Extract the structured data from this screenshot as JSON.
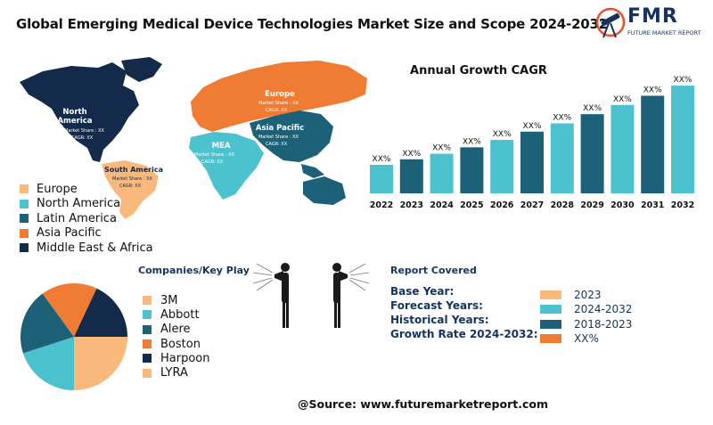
{
  "title": "Global Emerging Medical Device Technologies Market Size and Scope 2024-2032",
  "logo": {
    "name": "FMR",
    "subtitle": "FUTURE MARKET REPORT"
  },
  "colors": {
    "orange": "#f07c33",
    "cyan": "#4cc2cf",
    "teal": "#1d6179",
    "navy": "#142a4a",
    "peach": "#f9b87c",
    "barLight": "#4cc2cf",
    "barDark": "#1d6179"
  },
  "map": {
    "regions": [
      {
        "name": "North America",
        "share": "Market Share : XX",
        "cagr": "CAGR: XX"
      },
      {
        "name": "Europe",
        "share": "Market Share : XX",
        "cagr": "CAGR: XX"
      },
      {
        "name": "Asia Pacific",
        "share": "Market Share : XX",
        "cagr": "CAGR: XX"
      },
      {
        "name": "MEA",
        "share": "Market Share : XX",
        "cagr": "CAGR: XX"
      },
      {
        "name": "South America",
        "share": "Market Share : XX",
        "cagr": "CAGR: XX"
      }
    ]
  },
  "region_legend": [
    {
      "label": "Europe",
      "color": "#f9b87c"
    },
    {
      "label": "North America",
      "color": "#4cc2cf"
    },
    {
      "label": "Latin America",
      "color": "#1d6179"
    },
    {
      "label": "Asia Pacific",
      "color": "#f07c33"
    },
    {
      "label": "Middle East & Africa",
      "color": "#142a4a"
    }
  ],
  "chart_data": [
    {
      "type": "bar",
      "title": "Annual Growth CAGR",
      "categories": [
        "2022",
        "2023",
        "2024",
        "2025",
        "2026",
        "2027",
        "2028",
        "2029",
        "2030",
        "2031",
        "2032"
      ],
      "values": [
        31,
        37,
        43,
        50,
        58,
        67,
        76,
        86,
        96,
        106,
        117
      ],
      "data_labels": [
        "XX%",
        "XX%",
        "XX%",
        "XX%",
        "XX%",
        "XX%",
        "XX%",
        "XX%",
        "XX%",
        "XX%",
        "XX%"
      ],
      "colors": [
        "#4cc2cf",
        "#1d6179",
        "#4cc2cf",
        "#1d6179",
        "#4cc2cf",
        "#1d6179",
        "#4cc2cf",
        "#1d6179",
        "#4cc2cf",
        "#1d6179",
        "#4cc2cf"
      ],
      "ylim": [
        0,
        120
      ],
      "grid": false
    },
    {
      "type": "pie",
      "title": "Companies/Key Play",
      "categories": [
        "3M",
        "Abbott",
        "Alere",
        "Boston",
        "Harpoon",
        "LYRA"
      ],
      "values": [
        25,
        20,
        20,
        17,
        18,
        0
      ],
      "colors": [
        "#f9b87c",
        "#4cc2cf",
        "#1d6179",
        "#f07c33",
        "#142a4a",
        "#f9b87c"
      ]
    }
  ],
  "report": {
    "title": "Report Covered",
    "labels": [
      "Base Year:",
      "Forecast Years:",
      "Historical Years:",
      "Growth Rate 2024-2032:"
    ],
    "values": [
      {
        "value": "2023",
        "color": "#f9b87c"
      },
      {
        "value": "2024-2032",
        "color": "#4cc2cf"
      },
      {
        "value": "2018-2023",
        "color": "#1d6179"
      },
      {
        "value": "XX%",
        "color": "#f07c33"
      }
    ]
  },
  "source": "@Source: www.futuremarketreport.com"
}
